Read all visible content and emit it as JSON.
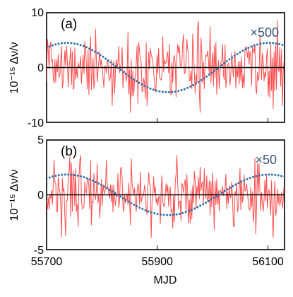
{
  "chart_data": [
    {
      "type": "line",
      "panel_label": "(a)",
      "annotation": "×500",
      "ylabel": "10⁻¹⁵ Δν/ν",
      "xlabel": "",
      "xlim": [
        55700,
        56130
      ],
      "ylim": [
        -10,
        10
      ],
      "yticks": [
        -10,
        0,
        10
      ],
      "ytick_labels": [
        "-10",
        "0",
        "10"
      ],
      "xticks": [
        55700,
        55900,
        56100
      ],
      "xtick_labels": [
        "",
        "",
        ""
      ],
      "zero_line": true,
      "series": [
        {
          "style": "noisy-line",
          "color": "#ff4d4d",
          "x_start": 55700,
          "x_step": 1.5,
          "num_points": 287,
          "std": 3.3,
          "clip": [
            -8.2,
            9.0
          ],
          "seed": 1234
        },
        {
          "style": "dotted-sinusoid",
          "color": "#2e6fa7",
          "amplitude": 4.5,
          "period": 365.25,
          "x_peak": 55737
        }
      ]
    },
    {
      "type": "line",
      "panel_label": "(b)",
      "annotation": "×50",
      "ylabel": "10⁻¹⁵ Δν/ν",
      "xlabel": "MJD",
      "xlim": [
        55700,
        56130
      ],
      "ylim": [
        -5,
        5
      ],
      "yticks": [
        -5,
        0,
        5
      ],
      "ytick_labels": [
        "-5",
        "0",
        "5"
      ],
      "xticks": [
        55700,
        55900,
        56100
      ],
      "xtick_labels": [
        "55700",
        "55900",
        "56100"
      ],
      "zero_line": true,
      "series": [
        {
          "style": "noisy-line",
          "color": "#ff4d4d",
          "x_start": 55700,
          "x_step": 1.5,
          "num_points": 287,
          "std": 1.5,
          "clip": [
            -3.9,
            3.6
          ],
          "seed": 5678
        },
        {
          "style": "dotted-sinusoid",
          "color": "#2e6fa7",
          "amplitude": 1.85,
          "period": 365.25,
          "x_peak": 55737
        }
      ]
    }
  ]
}
